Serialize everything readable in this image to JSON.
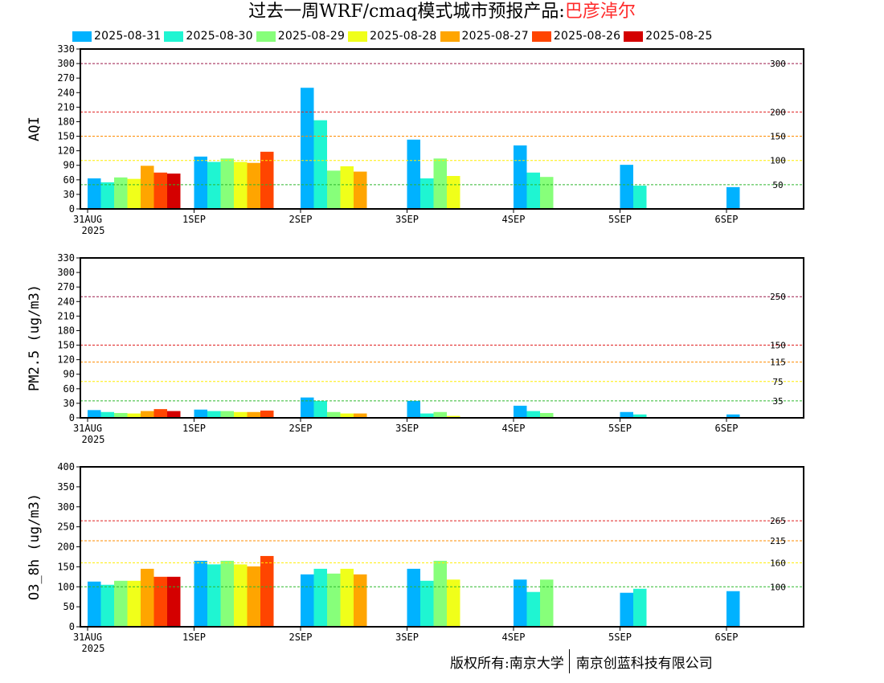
{
  "title": {
    "prefix": "过去一周WRF/cmaq模式城市预报产品:",
    "city": "巴彦淖尔"
  },
  "legend": [
    {
      "label": "2025-08-31",
      "color": "#00b2ff"
    },
    {
      "label": "2025-08-30",
      "color": "#1ff5d2"
    },
    {
      "label": "2025-08-29",
      "color": "#87ff7a"
    },
    {
      "label": "2025-08-28",
      "color": "#f0ff1a"
    },
    {
      "label": "2025-08-27",
      "color": "#ffa500"
    },
    {
      "label": "2025-08-26",
      "color": "#ff4500"
    },
    {
      "label": "2025-08-25",
      "color": "#d40000"
    }
  ],
  "footer": {
    "left": "版权所有:南京大学",
    "right": "南京创蓝科技有限公司"
  },
  "chart_data": [
    {
      "type": "bar",
      "ylabel": "AQI",
      "ylim": [
        0,
        330
      ],
      "yticks": [
        0,
        30,
        60,
        90,
        120,
        150,
        180,
        210,
        240,
        270,
        300,
        330
      ],
      "categories": [
        "31AUG",
        "1SEP",
        "2SEP",
        "3SEP",
        "4SEP",
        "5SEP",
        "6SEP"
      ],
      "first_category_year": "2025",
      "thresholds": [
        {
          "value": 300,
          "label": "300",
          "color": "#9c1a4a"
        },
        {
          "value": 200,
          "label": "200",
          "color": "#e02020"
        },
        {
          "value": 150,
          "label": "150",
          "color": "#ff8c00"
        },
        {
          "value": 100,
          "label": "100",
          "color": "#ffee00"
        },
        {
          "value": 50,
          "label": "50",
          "color": "#2db82d"
        }
      ],
      "series": [
        {
          "name": "2025-08-31",
          "values": [
            63,
            108,
            250,
            143,
            131,
            91,
            45
          ]
        },
        {
          "name": "2025-08-30",
          "values": [
            55,
            97,
            183,
            63,
            75,
            48,
            null
          ]
        },
        {
          "name": "2025-08-29",
          "values": [
            65,
            104,
            79,
            104,
            66,
            null,
            null
          ]
        },
        {
          "name": "2025-08-28",
          "values": [
            62,
            97,
            88,
            68,
            null,
            null,
            null
          ]
        },
        {
          "name": "2025-08-27",
          "values": [
            89,
            95,
            77,
            null,
            null,
            null,
            null
          ]
        },
        {
          "name": "2025-08-26",
          "values": [
            75,
            118,
            null,
            null,
            null,
            null,
            null
          ]
        },
        {
          "name": "2025-08-25",
          "values": [
            73,
            null,
            null,
            null,
            null,
            null,
            null
          ]
        }
      ]
    },
    {
      "type": "bar",
      "ylabel": "PM2.5 (ug/m3)",
      "ylim": [
        0,
        330
      ],
      "yticks": [
        0,
        30,
        60,
        90,
        120,
        150,
        180,
        210,
        240,
        270,
        300,
        330
      ],
      "categories": [
        "31AUG",
        "1SEP",
        "2SEP",
        "3SEP",
        "4SEP",
        "5SEP",
        "6SEP"
      ],
      "first_category_year": "2025",
      "thresholds": [
        {
          "value": 250,
          "label": "250",
          "color": "#9c1a4a"
        },
        {
          "value": 150,
          "label": "150",
          "color": "#e02020"
        },
        {
          "value": 115,
          "label": "115",
          "color": "#ff8c00"
        },
        {
          "value": 75,
          "label": "75",
          "color": "#ffee00"
        },
        {
          "value": 35,
          "label": "35",
          "color": "#2db82d"
        }
      ],
      "series": [
        {
          "name": "2025-08-31",
          "values": [
            16,
            17,
            42,
            35,
            25,
            12,
            7
          ]
        },
        {
          "name": "2025-08-30",
          "values": [
            12,
            14,
            35,
            9,
            14,
            7,
            null
          ]
        },
        {
          "name": "2025-08-29",
          "values": [
            10,
            14,
            12,
            12,
            10,
            null,
            null
          ]
        },
        {
          "name": "2025-08-28",
          "values": [
            9,
            12,
            9,
            4,
            null,
            null,
            null
          ]
        },
        {
          "name": "2025-08-27",
          "values": [
            14,
            12,
            9,
            null,
            null,
            null,
            null
          ]
        },
        {
          "name": "2025-08-26",
          "values": [
            18,
            15,
            null,
            null,
            null,
            null,
            null
          ]
        },
        {
          "name": "2025-08-25",
          "values": [
            14,
            null,
            null,
            null,
            null,
            null,
            null
          ]
        }
      ]
    },
    {
      "type": "bar",
      "ylabel": "O3_8h (ug/m3)",
      "ylim": [
        0,
        400
      ],
      "yticks": [
        0,
        50,
        100,
        150,
        200,
        250,
        300,
        350,
        400
      ],
      "categories": [
        "31AUG",
        "1SEP",
        "2SEP",
        "3SEP",
        "4SEP",
        "5SEP",
        "6SEP"
      ],
      "first_category_year": "2025",
      "thresholds": [
        {
          "value": 265,
          "label": "265",
          "color": "#e02020"
        },
        {
          "value": 215,
          "label": "215",
          "color": "#ff8c00"
        },
        {
          "value": 160,
          "label": "160",
          "color": "#ffee00"
        },
        {
          "value": 100,
          "label": "100",
          "color": "#2db82d"
        }
      ],
      "series": [
        {
          "name": "2025-08-31",
          "values": [
            113,
            165,
            131,
            145,
            118,
            85,
            89
          ]
        },
        {
          "name": "2025-08-30",
          "values": [
            105,
            156,
            145,
            115,
            87,
            95,
            null
          ]
        },
        {
          "name": "2025-08-29",
          "values": [
            115,
            165,
            133,
            165,
            118,
            null,
            null
          ]
        },
        {
          "name": "2025-08-28",
          "values": [
            115,
            156,
            145,
            118,
            null,
            null,
            null
          ]
        },
        {
          "name": "2025-08-27",
          "values": [
            145,
            151,
            131,
            null,
            null,
            null,
            null
          ]
        },
        {
          "name": "2025-08-26",
          "values": [
            125,
            177,
            null,
            null,
            null,
            null,
            null
          ]
        },
        {
          "name": "2025-08-25",
          "values": [
            125,
            null,
            null,
            null,
            null,
            null,
            null
          ]
        }
      ]
    }
  ]
}
